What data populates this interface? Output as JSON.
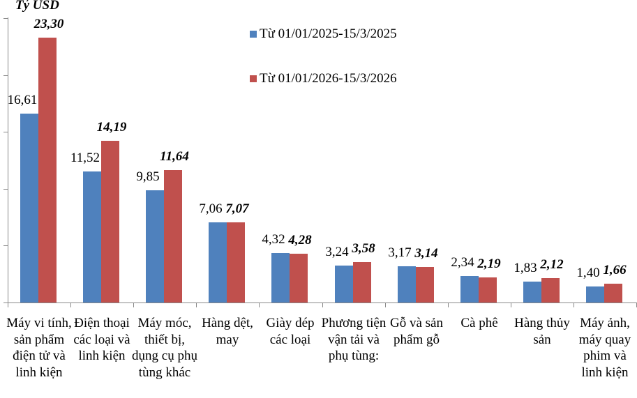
{
  "chart_data": {
    "type": "bar",
    "title": "",
    "ylabel": "Tỷ USD",
    "xlabel": "",
    "ylim": [
      0,
      25
    ],
    "yticks": [
      0,
      5,
      10,
      15,
      20,
      25
    ],
    "ytick_labels_visible": false,
    "grid": false,
    "legend_position": "top-right",
    "categories": [
      "Máy vi tính, sản phẩm điện tử và linh kiện",
      "Điện thoại các loại và linh kiện",
      "Máy móc, thiết bị, dụng cụ phụ tùng khác",
      "Hàng dệt, may",
      "Giày dép các loại",
      "Phương tiện vận tải và phụ tùng:",
      "Gỗ và sản phẩm gỗ",
      "Cà phê",
      "Hàng thủy sản",
      "Máy ảnh, máy quay phim và linh kiện"
    ],
    "series": [
      {
        "name": "Từ 01/01/2025-15/3/2025",
        "color": "#4F81BD",
        "values": [
          16.61,
          11.52,
          9.85,
          7.06,
          4.32,
          3.24,
          3.17,
          2.34,
          1.83,
          1.4
        ],
        "labels": [
          "16,61",
          "11,52",
          "9,85",
          "7,06",
          "4,32",
          "3,24",
          "3,17",
          "2,34",
          "1,83",
          "1,40"
        ]
      },
      {
        "name": "Từ 01/01/2026-15/3/2026",
        "color": "#C0504D",
        "values": [
          23.3,
          14.19,
          11.64,
          7.07,
          4.28,
          3.58,
          3.14,
          2.19,
          2.12,
          1.66
        ],
        "labels": [
          "23,30",
          "14,19",
          "11,64",
          "7,07",
          "4,28",
          "3,58",
          "3,14",
          "2,19",
          "2,12",
          "1,66"
        ]
      }
    ]
  }
}
